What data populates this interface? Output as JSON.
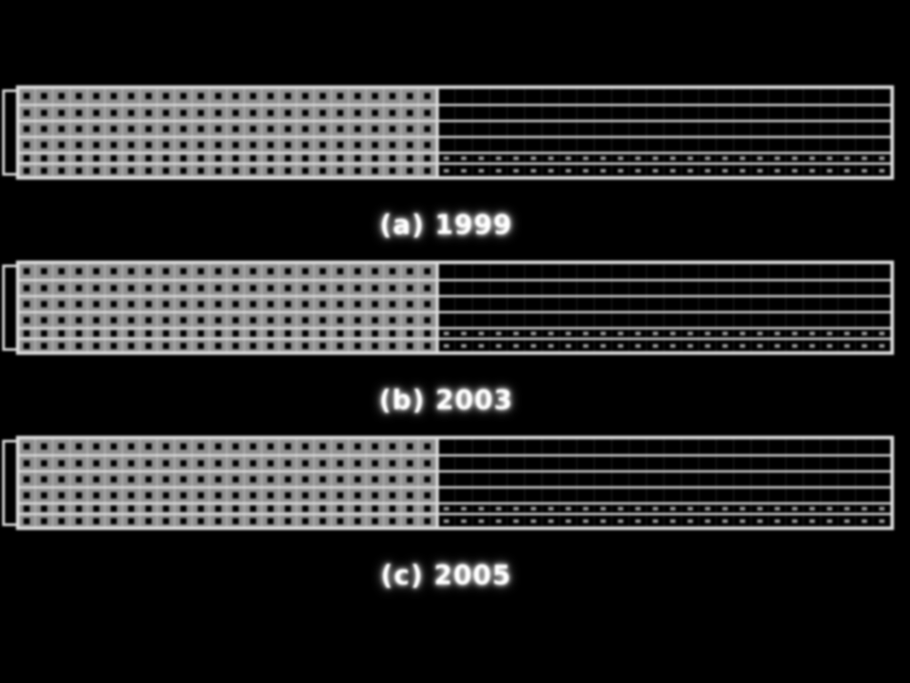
{
  "panels": [
    {
      "caption": "(a) 1999",
      "filled_fraction": 0.48
    },
    {
      "caption": "(b) 2003",
      "filled_fraction": 0.48
    },
    {
      "caption": "(c) 2005",
      "filled_fraction": 0.48
    }
  ],
  "colors": {
    "background": "#000000",
    "line": "#dcdcdc",
    "fill": "#8f8f8f",
    "dot": "#000000"
  }
}
